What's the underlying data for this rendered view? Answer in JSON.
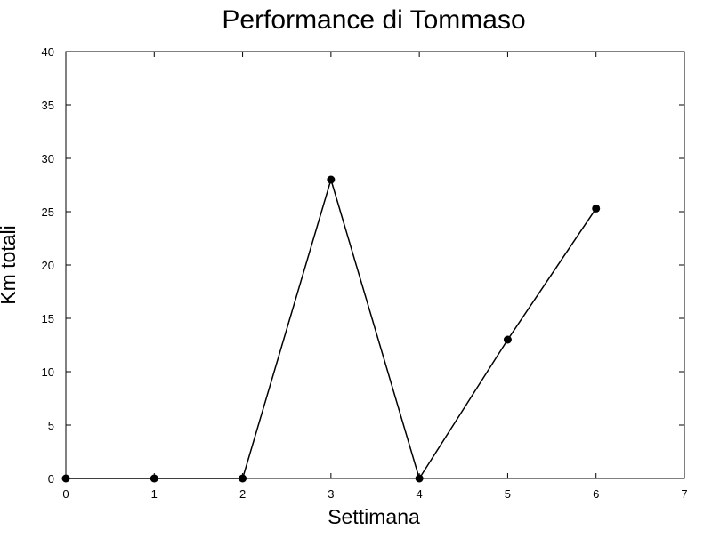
{
  "chart_data": {
    "type": "line",
    "title": "Performance di Tommaso",
    "xlabel": "Settimana",
    "ylabel": "Km totali",
    "xlim": [
      0,
      7
    ],
    "ylim": [
      0,
      40
    ],
    "x_ticks": [
      "0",
      "1",
      "2",
      "3",
      "4",
      "5",
      "6",
      "7"
    ],
    "y_ticks": [
      "0",
      "5",
      "10",
      "15",
      "20",
      "25",
      "30",
      "35",
      "40"
    ],
    "grid": false,
    "series": [
      {
        "x": [
          0,
          1,
          2,
          3,
          4,
          5,
          6
        ],
        "values": [
          0,
          0,
          0,
          28,
          0,
          13,
          25.3
        ],
        "color": "#000000",
        "marker": "circle"
      }
    ]
  }
}
